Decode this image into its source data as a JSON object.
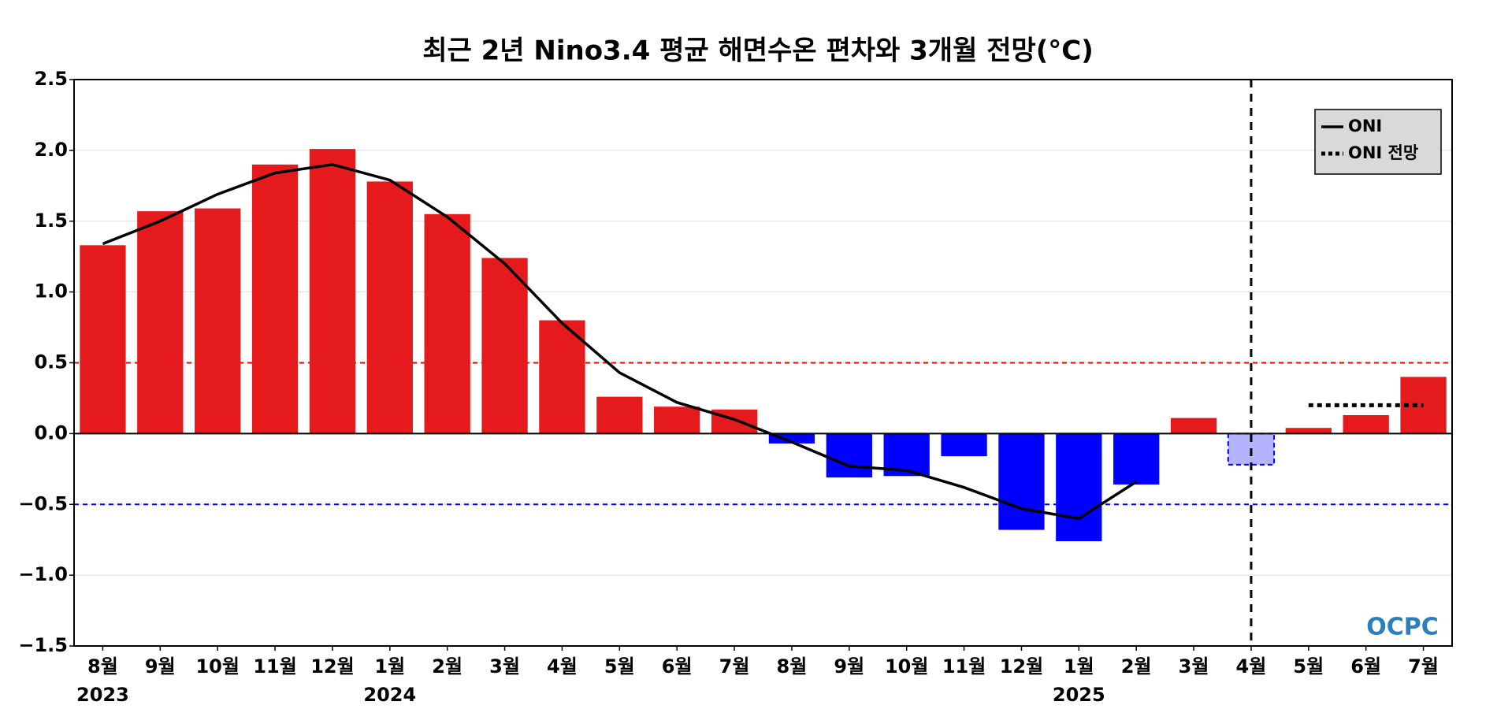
{
  "chart_data": {
    "type": "bar",
    "title": "최근 2년 Nino3.4 평균 해면수온 편차와 3개월 전망(°C)",
    "categories": [
      "8월",
      "9월",
      "10월",
      "11월",
      "12월",
      "1월",
      "2월",
      "3월",
      "4월",
      "5월",
      "6월",
      "7월",
      "8월",
      "9월",
      "10월",
      "11월",
      "12월",
      "1월",
      "2월",
      "3월",
      "4월",
      "5월",
      "6월",
      "7월"
    ],
    "year_labels": [
      {
        "at": 0,
        "label": "2023"
      },
      {
        "at": 5,
        "label": "2024"
      },
      {
        "at": 17,
        "label": "2025"
      }
    ],
    "values": [
      1.33,
      1.57,
      1.59,
      1.9,
      2.01,
      1.78,
      1.55,
      1.24,
      0.8,
      0.26,
      0.19,
      0.17,
      -0.07,
      -0.31,
      -0.3,
      -0.16,
      -0.68,
      -0.76,
      -0.36,
      0.11,
      -0.22,
      0.04,
      0.13,
      0.4
    ],
    "colors": [
      "#e41a1c",
      "#e41a1c",
      "#e41a1c",
      "#e41a1c",
      "#e41a1c",
      "#e41a1c",
      "#e41a1c",
      "#e41a1c",
      "#e41a1c",
      "#e41a1c",
      "#e41a1c",
      "#e41a1c",
      "#0000ff",
      "#0000ff",
      "#0000ff",
      "#0000ff",
      "#0000ff",
      "#0000ff",
      "#0000ff",
      "#e41a1c",
      "#b3b3ff",
      "#e41a1c",
      "#e41a1c",
      "#e41a1c"
    ],
    "dashed": [
      false,
      false,
      false,
      false,
      false,
      false,
      false,
      false,
      false,
      false,
      false,
      false,
      false,
      false,
      false,
      false,
      false,
      false,
      false,
      false,
      true,
      false,
      false,
      false
    ],
    "series": [
      {
        "name": "ONI",
        "color": "#000000",
        "style": "solid",
        "values": [
          1.34,
          1.5,
          1.69,
          1.84,
          1.9,
          1.79,
          1.53,
          1.2,
          0.78,
          0.43,
          0.22,
          0.1,
          -0.06,
          -0.23,
          -0.26,
          -0.38,
          -0.53,
          -0.6,
          -0.34,
          null,
          null,
          null,
          null,
          null
        ]
      },
      {
        "name": "ONI 전망",
        "color": "#000000",
        "style": "dotted",
        "values": [
          null,
          null,
          null,
          null,
          null,
          null,
          null,
          null,
          null,
          null,
          null,
          null,
          null,
          null,
          null,
          null,
          null,
          null,
          null,
          null,
          null,
          0.2,
          0.2,
          0.2
        ]
      }
    ],
    "reference_lines": [
      {
        "value": 0.5,
        "color": "#ff0000"
      },
      {
        "value": -0.5,
        "color": "#0000ff"
      }
    ],
    "vline_at": 20,
    "ylim": [
      -1.5,
      2.5
    ],
    "yticks": [
      {
        "value": -1.5,
        "label": "−1.5"
      },
      {
        "value": -1.0,
        "label": "−1.0"
      },
      {
        "value": -0.5,
        "label": "−0.5"
      },
      {
        "value": 0,
        "label": "0.0"
      },
      {
        "value": 0.5,
        "label": "0.5"
      },
      {
        "value": 1.0,
        "label": "1.0"
      },
      {
        "value": 1.5,
        "label": "1.5"
      },
      {
        "value": 2.0,
        "label": "2.0"
      },
      {
        "value": 2.5,
        "label": "2.5"
      }
    ],
    "grid": true,
    "legend": "upper right",
    "logo": "OCPC"
  }
}
